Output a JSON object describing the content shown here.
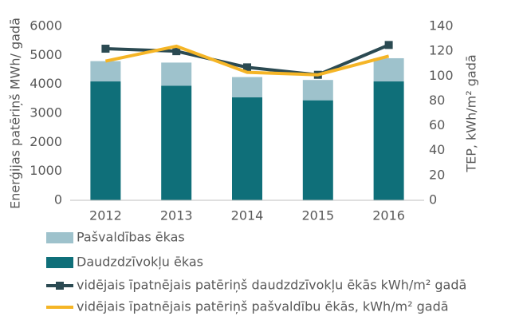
{
  "chart_data": {
    "type": "bar-line",
    "y_label": "Enerģijas patēriņš MWh/ gadā",
    "y2_label": "TEP, kWh/m² gadā",
    "categories": [
      "2012",
      "2013",
      "2014",
      "2015",
      "2016"
    ],
    "ylim": [
      0,
      6000
    ],
    "yticks": [
      0,
      1000,
      2000,
      3000,
      4000,
      5000,
      6000
    ],
    "y2lim": [
      0,
      140
    ],
    "y2ticks": [
      0,
      20,
      40,
      60,
      80,
      100,
      120,
      140
    ],
    "series": [
      {
        "name": "Pašvaldības ēkas",
        "type": "bar",
        "color": "#9ec2cc",
        "values": [
          700,
          800,
          700,
          700,
          800
        ]
      },
      {
        "name": "Daudzdzīvokļu ēkas",
        "type": "bar",
        "color": "#0f6f79",
        "values": [
          4100,
          3950,
          3550,
          3450,
          4100
        ]
      },
      {
        "name": "vidējais īpatnējais patēriņš daudzdzīvokļu ēkās kWh/m² gadā",
        "type": "line",
        "axis": "y2",
        "color": "#2b4a52",
        "marker": "square",
        "values": [
          122,
          120,
          107,
          101,
          125
        ]
      },
      {
        "name": "vidējais īpatnējais patēriņš pašvaldību ēkās, kWh/m² gadā",
        "type": "line",
        "axis": "y2",
        "color": "#f5b526",
        "values": [
          112,
          124,
          103,
          101,
          116
        ]
      }
    ]
  }
}
